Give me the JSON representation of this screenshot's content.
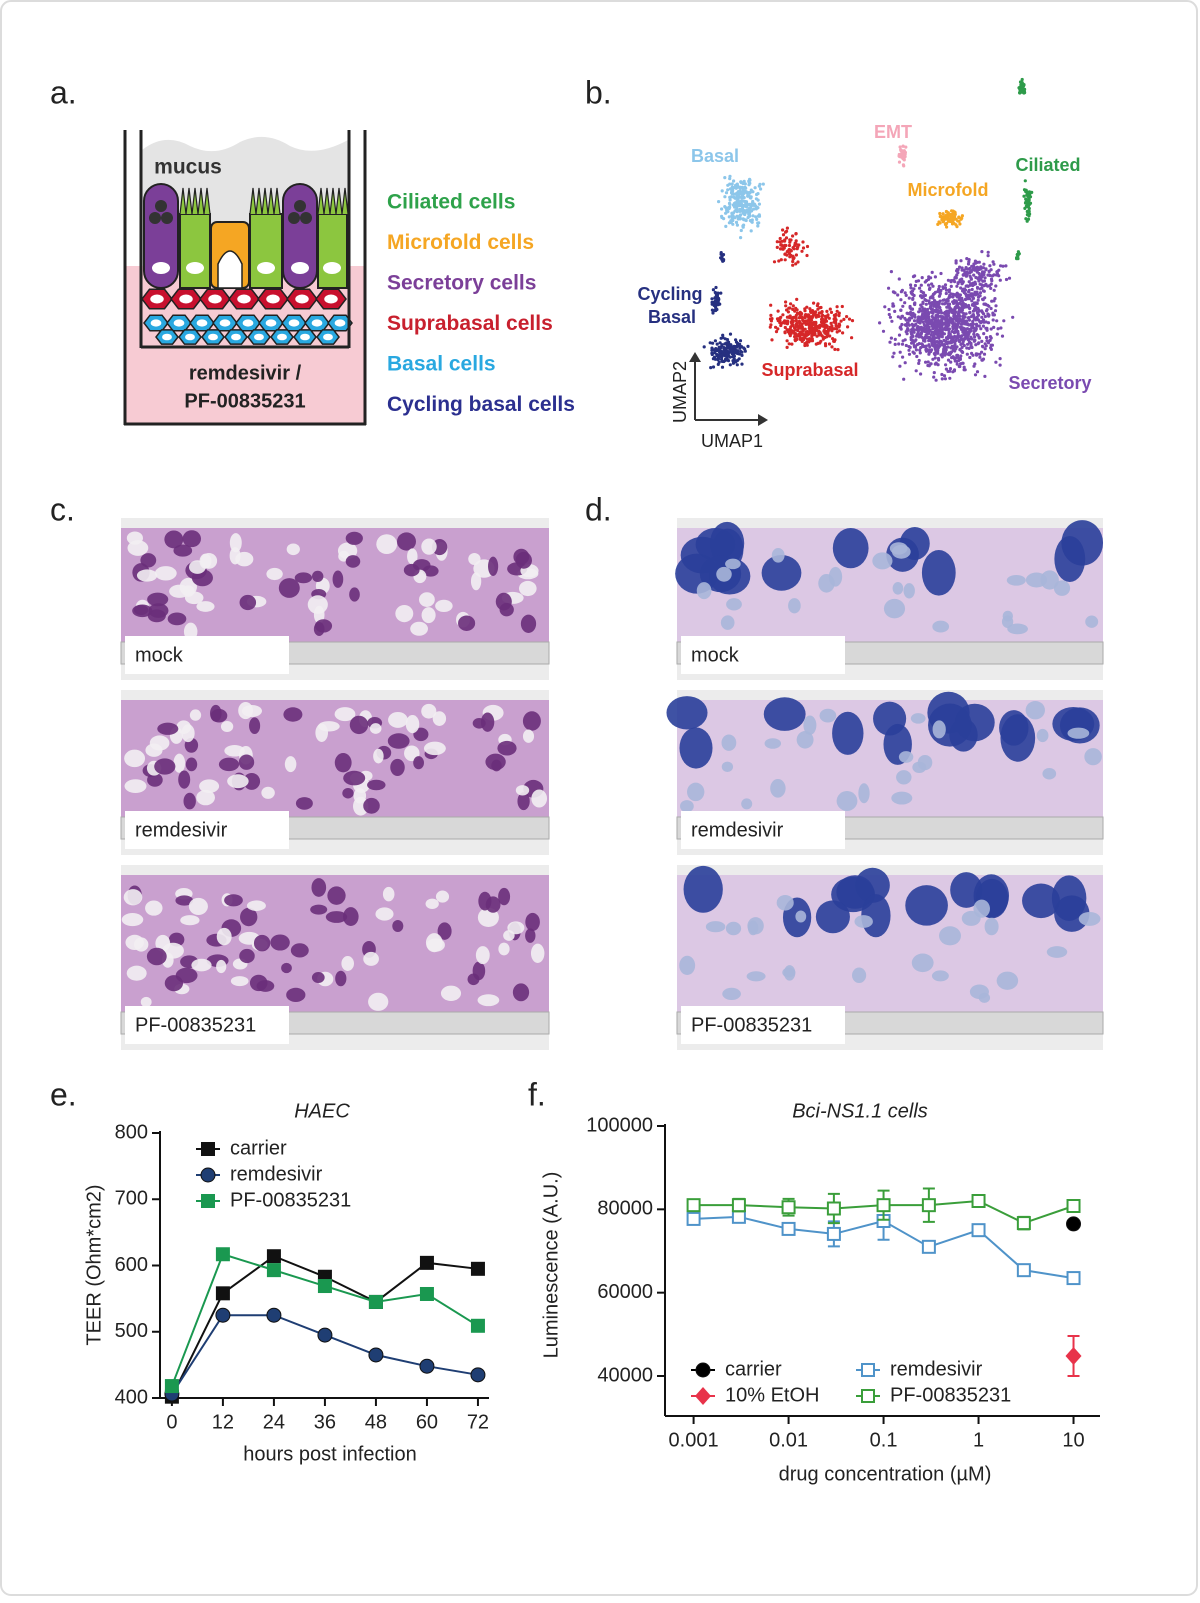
{
  "panel_labels": [
    "a.",
    "b.",
    "c.",
    "d.",
    "e.",
    "f."
  ],
  "schematic": {
    "mucus_label": "mucus",
    "medium_label": [
      "remdesivir /",
      "PF-00835231"
    ],
    "legend": [
      {
        "label": "Ciliated cells",
        "color": "#2ea24a"
      },
      {
        "label": "Microfold cells",
        "color": "#f5a623"
      },
      {
        "label": "Secretory cells",
        "color": "#7b3f98"
      },
      {
        "label": "Suprabasal cells",
        "color": "#c8202e"
      },
      {
        "label": "Basal cells",
        "color": "#29a8e0"
      },
      {
        "label": "Cycling basal cells",
        "color": "#2b2f8f"
      }
    ]
  },
  "umap": {
    "x_axis": "UMAP1",
    "y_axis": "UMAP2",
    "clusters": [
      {
        "label_lines": [
          "Basal"
        ],
        "color": "#8cc6ea"
      },
      {
        "label_lines": [
          "EMT"
        ],
        "color": "#f4a6b8"
      },
      {
        "label_lines": [
          "Microfold"
        ],
        "color": "#f5a623"
      },
      {
        "label_lines": [
          "Ciliated"
        ],
        "color": "#2e9b4a"
      },
      {
        "label_lines": [
          "Cycling",
          "Basal"
        ],
        "color": "#263080"
      },
      {
        "label_lines": [
          "Suprabasal"
        ],
        "color": "#d62728"
      },
      {
        "label_lines": [
          "Secretory"
        ],
        "color": "#7a4ab0"
      }
    ]
  },
  "histology": {
    "panel_c": [
      "mock",
      "remdesivir",
      "PF-00835231"
    ],
    "panel_d": [
      "mock",
      "remdesivir",
      "PF-00835231"
    ]
  },
  "chart_data": [
    {
      "type": "line",
      "title": "HAEC",
      "x_label": "hours post infection",
      "y_label": "TEER (Ohm*cm2)",
      "x": [
        0,
        12,
        24,
        36,
        48,
        60,
        72
      ],
      "xlim": [
        -2.8,
        74.6
      ],
      "xticks": [
        0,
        12,
        24,
        36,
        48,
        60,
        72
      ],
      "ylim": [
        400,
        800
      ],
      "yticks": [
        400,
        500,
        600,
        700,
        800
      ],
      "log_x": false,
      "grid": false,
      "legend": "top-left",
      "series": [
        {
          "name": "carrier",
          "color": "#111111",
          "marker": "square",
          "values": [
            402,
            558,
            614,
            583,
            545,
            604,
            595
          ]
        },
        {
          "name": "remdesivir",
          "color": "#1f3e73",
          "marker": "circle",
          "values": [
            406,
            525,
            525,
            495,
            465,
            448,
            435
          ]
        },
        {
          "name": "PF-00835231",
          "color": "#1a9850",
          "marker": "square",
          "values": [
            418,
            617,
            593,
            569,
            545,
            557,
            509
          ]
        }
      ]
    },
    {
      "type": "line",
      "title": "Bci-NS1.1 cells",
      "x_label": "drug concentration (µM)",
      "y_label": "Luminescence (A.U.)",
      "xlim": [
        0.0005,
        19
      ],
      "xticks": [
        0.001,
        0.01,
        0.1,
        1,
        10
      ],
      "log_x": true,
      "ylim": [
        30400,
        100000
      ],
      "yticks": [
        40000,
        60000,
        80000,
        100000
      ],
      "grid": false,
      "legend": "bottom",
      "series": [
        {
          "name": "carrier",
          "color": "#000000",
          "marker": "circle",
          "x": [
            10
          ],
          "values": [
            76500
          ]
        },
        {
          "name": "10% EtOH",
          "color": "#e8334a",
          "marker": "diamond",
          "x": [
            10
          ],
          "values": [
            44800
          ],
          "errors": [
            4800
          ]
        },
        {
          "name": "remdesivir",
          "color": "#4f93c9",
          "marker": "open-square",
          "x": [
            0.001,
            0.003,
            0.01,
            0.03,
            0.1,
            0.3,
            1,
            3,
            10
          ],
          "values": [
            77700,
            78200,
            75300,
            74100,
            77200,
            71000,
            75000,
            65400,
            63500
          ],
          "errors": [
            1000,
            1200,
            800,
            3000,
            4500,
            800,
            800,
            800,
            800
          ]
        },
        {
          "name": "PF-00835231",
          "color": "#3a9e3a",
          "marker": "open-square",
          "x": [
            0.001,
            0.003,
            0.01,
            0.03,
            0.1,
            0.3,
            1,
            3,
            10
          ],
          "values": [
            81000,
            81000,
            80500,
            80200,
            81000,
            81000,
            82000,
            76700,
            80800
          ],
          "errors": [
            800,
            1500,
            2000,
            3500,
            3500,
            4000,
            800,
            1500,
            800
          ]
        }
      ]
    }
  ]
}
